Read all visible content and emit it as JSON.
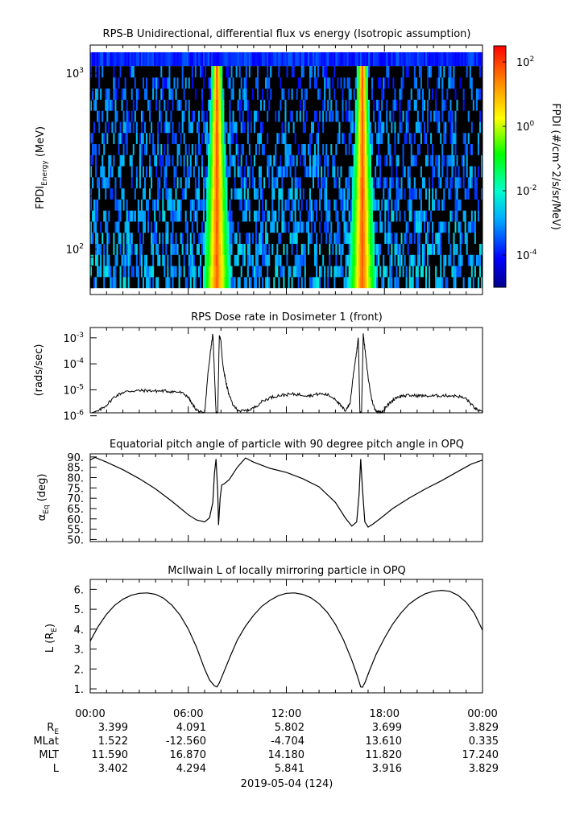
{
  "chart_data": [
    {
      "type": "heatmap",
      "title": "RPS-B  Unidirectional, differential flux vs energy (Isotropic assumption)",
      "ylabel_main": "FPDI",
      "ylabel_sub": "Energy",
      "ylabel_unit": " (MeV)",
      "yscale": "log",
      "ylim": [
        55,
        1450
      ],
      "yticks": [
        {
          "value": 100,
          "base": "10",
          "exp": "2"
        },
        {
          "value": 1000,
          "base": "10",
          "exp": "3"
        }
      ],
      "xlim": [
        0,
        24
      ],
      "colorbar": {
        "label": "FPDI (#/cm^2/s/sr/MeV)",
        "scale": "log",
        "range": [
          -5,
          2.5
        ],
        "ticks": [
          {
            "value": -4,
            "base": "10",
            "exp": "-4"
          },
          {
            "value": -2,
            "base": "10",
            "exp": "-2"
          },
          {
            "value": 0,
            "base": "10",
            "exp": "0"
          },
          {
            "value": 2,
            "base": "10",
            "exp": "2"
          }
        ],
        "colors": [
          "#00008b",
          "#0000ff",
          "#00aaff",
          "#00ffcc",
          "#00ff00",
          "#ffff00",
          "#ff8800",
          "#ff0000"
        ]
      },
      "belt_passes_hours": [
        7.75,
        16.65
      ]
    },
    {
      "type": "line",
      "title": "RPS  Dose rate in Dosimeter 1 (front)",
      "ylabel": "(rads/sec)",
      "yscale": "log",
      "ylim": [
        1.3e-06,
        0.0025
      ],
      "yticks": [
        {
          "value": 1e-06,
          "base": "10",
          "exp": "-6"
        },
        {
          "value": 1e-05,
          "base": "10",
          "exp": "-5"
        },
        {
          "value": 0.0001,
          "base": "10",
          "exp": "-4"
        },
        {
          "value": 0.001,
          "base": "10",
          "exp": "-3"
        }
      ],
      "xlim": [
        0,
        24
      ],
      "x": [
        0,
        0.5,
        1,
        1.5,
        2,
        2.5,
        3,
        3.5,
        4,
        4.5,
        5,
        5.5,
        6,
        6.2,
        6.5,
        6.8,
        7.0,
        7.2,
        7.4,
        7.5,
        7.6,
        7.7,
        7.8,
        7.9,
        8.0,
        8.1,
        8.3,
        8.5,
        8.8,
        9.2,
        9.6,
        10,
        10.5,
        11,
        11.5,
        12,
        12.5,
        13,
        13.5,
        14,
        14.5,
        15,
        15.3,
        15.6,
        15.9,
        16.1,
        16.3,
        16.4,
        16.5,
        16.6,
        16.7,
        16.8,
        17.0,
        17.2,
        17.4,
        17.6,
        17.9,
        18.3,
        18.7,
        19,
        19.5,
        20,
        20.5,
        21,
        21.5,
        22,
        22.5,
        23,
        23.3,
        23.6,
        24
      ],
      "y": [
        1.2e-06,
        1.5e-06,
        2.6e-06,
        5.5e-06,
        8e-06,
        9e-06,
        9.3e-06,
        9.3e-06,
        9e-06,
        9e-06,
        8.6e-06,
        8e-06,
        5.5e-06,
        3e-06,
        1.7e-06,
        1.3e-06,
        1.2e-06,
        4e-05,
        0.0005,
        0.0014,
        5e-05,
        1.3e-06,
        1.3e-06,
        0.0014,
        0.0007,
        0.0001,
        2e-05,
        6e-06,
        2.2e-06,
        1.5e-06,
        1.6e-06,
        2e-06,
        3.5e-06,
        5e-06,
        6e-06,
        6.5e-06,
        6.8e-06,
        6.4e-06,
        6e-06,
        7e-06,
        6.5e-06,
        4.5e-06,
        2.5e-06,
        1.6e-06,
        3e-06,
        4e-05,
        0.0003,
        0.001,
        1.3e-06,
        1.3e-06,
        0.0014,
        0.0004,
        3e-05,
        5e-06,
        1.8e-06,
        1.4e-06,
        1.5e-06,
        3e-06,
        5e-06,
        5.8e-06,
        6e-06,
        6e-06,
        5.8e-06,
        5.8e-06,
        6e-06,
        6e-06,
        5.7e-06,
        4.5e-06,
        2.8e-06,
        1.8e-06,
        1.3e-06
      ]
    },
    {
      "type": "line",
      "title": "Equatorial pitch angle of particle with 90 degree pitch angle in OPQ",
      "ylabel_main": "α",
      "ylabel_sub": "Eq",
      "ylabel_unit": " (deg)",
      "ylim": [
        49,
        91.5
      ],
      "yticks": [
        50.0,
        55.0,
        60.0,
        65.0,
        70.0,
        75.0,
        80.0,
        85.0,
        90.0
      ],
      "ytick_labels": [
        "50.",
        "55.",
        "60.",
        "65.",
        "70.",
        "75.",
        "80.",
        "85.",
        "90."
      ],
      "xlim": [
        0,
        24
      ],
      "x": [
        0,
        0.3,
        1,
        2,
        3,
        4,
        5,
        6,
        6.5,
        7.0,
        7.3,
        7.5,
        7.6,
        7.7,
        7.8,
        7.85,
        7.95,
        8.05,
        8.2,
        8.5,
        9.0,
        9.5,
        10,
        11,
        12,
        13,
        14,
        15,
        15.6,
        16.0,
        16.3,
        16.45,
        16.55,
        16.65,
        16.8,
        17.0,
        17.3,
        17.8,
        18.5,
        19.5,
        20.5,
        21.5,
        22.5,
        23.3,
        24
      ],
      "y": [
        88.5,
        89.8,
        87.5,
        83.8,
        79.5,
        74.5,
        68.5,
        62.0,
        59.5,
        58.5,
        60.5,
        68.0,
        82.0,
        89.0,
        73.0,
        57.0,
        70.0,
        76.5,
        77.0,
        79.0,
        85.0,
        89.5,
        87.5,
        84.5,
        82.5,
        79.5,
        75.5,
        68.0,
        60.5,
        56.5,
        58.5,
        72.0,
        89.0,
        75.0,
        58.5,
        56.0,
        57.5,
        60.5,
        65.0,
        70.0,
        74.5,
        78.5,
        83.0,
        86.5,
        88.5
      ]
    },
    {
      "type": "line",
      "title": "McIlwain L of locally mirroring particle in OPQ",
      "ylabel_main": "L (R",
      "ylabel_sub": "E",
      "ylabel_unit": ")",
      "ylim": [
        0.8,
        6.5
      ],
      "yticks": [
        1.0,
        2.0,
        3.0,
        4.0,
        5.0,
        6.0
      ],
      "ytick_labels": [
        "1.",
        "2.",
        "3.",
        "4.",
        "5.",
        "6."
      ],
      "xlim": [
        0,
        24
      ],
      "x": [
        0,
        0.5,
        1,
        1.5,
        2,
        2.5,
        3,
        3.5,
        4,
        4.5,
        5,
        5.5,
        6,
        6.5,
        7,
        7.3,
        7.6,
        7.75,
        7.9,
        8.2,
        8.6,
        9,
        9.5,
        10,
        10.5,
        11,
        11.5,
        12,
        12.5,
        13,
        13.5,
        14,
        14.5,
        15,
        15.5,
        16,
        16.3,
        16.55,
        16.65,
        16.8,
        17.1,
        17.5,
        18,
        18.5,
        19,
        19.5,
        20,
        20.5,
        21,
        21.5,
        22,
        22.5,
        23,
        23.5,
        24
      ],
      "y": [
        3.4,
        4.15,
        4.75,
        5.2,
        5.5,
        5.7,
        5.8,
        5.82,
        5.75,
        5.55,
        5.2,
        4.7,
        4.0,
        3.1,
        2.0,
        1.45,
        1.15,
        1.1,
        1.3,
        1.9,
        2.7,
        3.45,
        4.15,
        4.7,
        5.15,
        5.45,
        5.68,
        5.8,
        5.82,
        5.75,
        5.58,
        5.28,
        4.85,
        4.25,
        3.45,
        2.45,
        1.75,
        1.1,
        1.08,
        1.3,
        1.95,
        2.75,
        3.55,
        4.25,
        4.8,
        5.25,
        5.55,
        5.78,
        5.9,
        5.95,
        5.9,
        5.7,
        5.35,
        4.8,
        3.95
      ]
    }
  ],
  "x_axis": {
    "ticks": [
      "00:00",
      "06:00",
      "12:00",
      "18:00",
      "00:00"
    ],
    "date_label": "2019-05-04 (124)"
  },
  "ephemeris": {
    "rows": [
      {
        "label": "R",
        "sub": "E",
        "values": [
          "3.399",
          "4.091",
          "5.802",
          "3.699",
          "3.829"
        ]
      },
      {
        "label": "MLat",
        "sub": "",
        "values": [
          "1.522",
          "-12.560",
          "-4.704",
          "13.610",
          "0.335"
        ]
      },
      {
        "label": "MLT",
        "sub": "",
        "values": [
          "11.590",
          "16.870",
          "14.180",
          "11.820",
          "17.240"
        ]
      },
      {
        "label": "L",
        "sub": "",
        "values": [
          "3.402",
          "4.294",
          "5.841",
          "3.916",
          "3.829"
        ]
      }
    ]
  }
}
